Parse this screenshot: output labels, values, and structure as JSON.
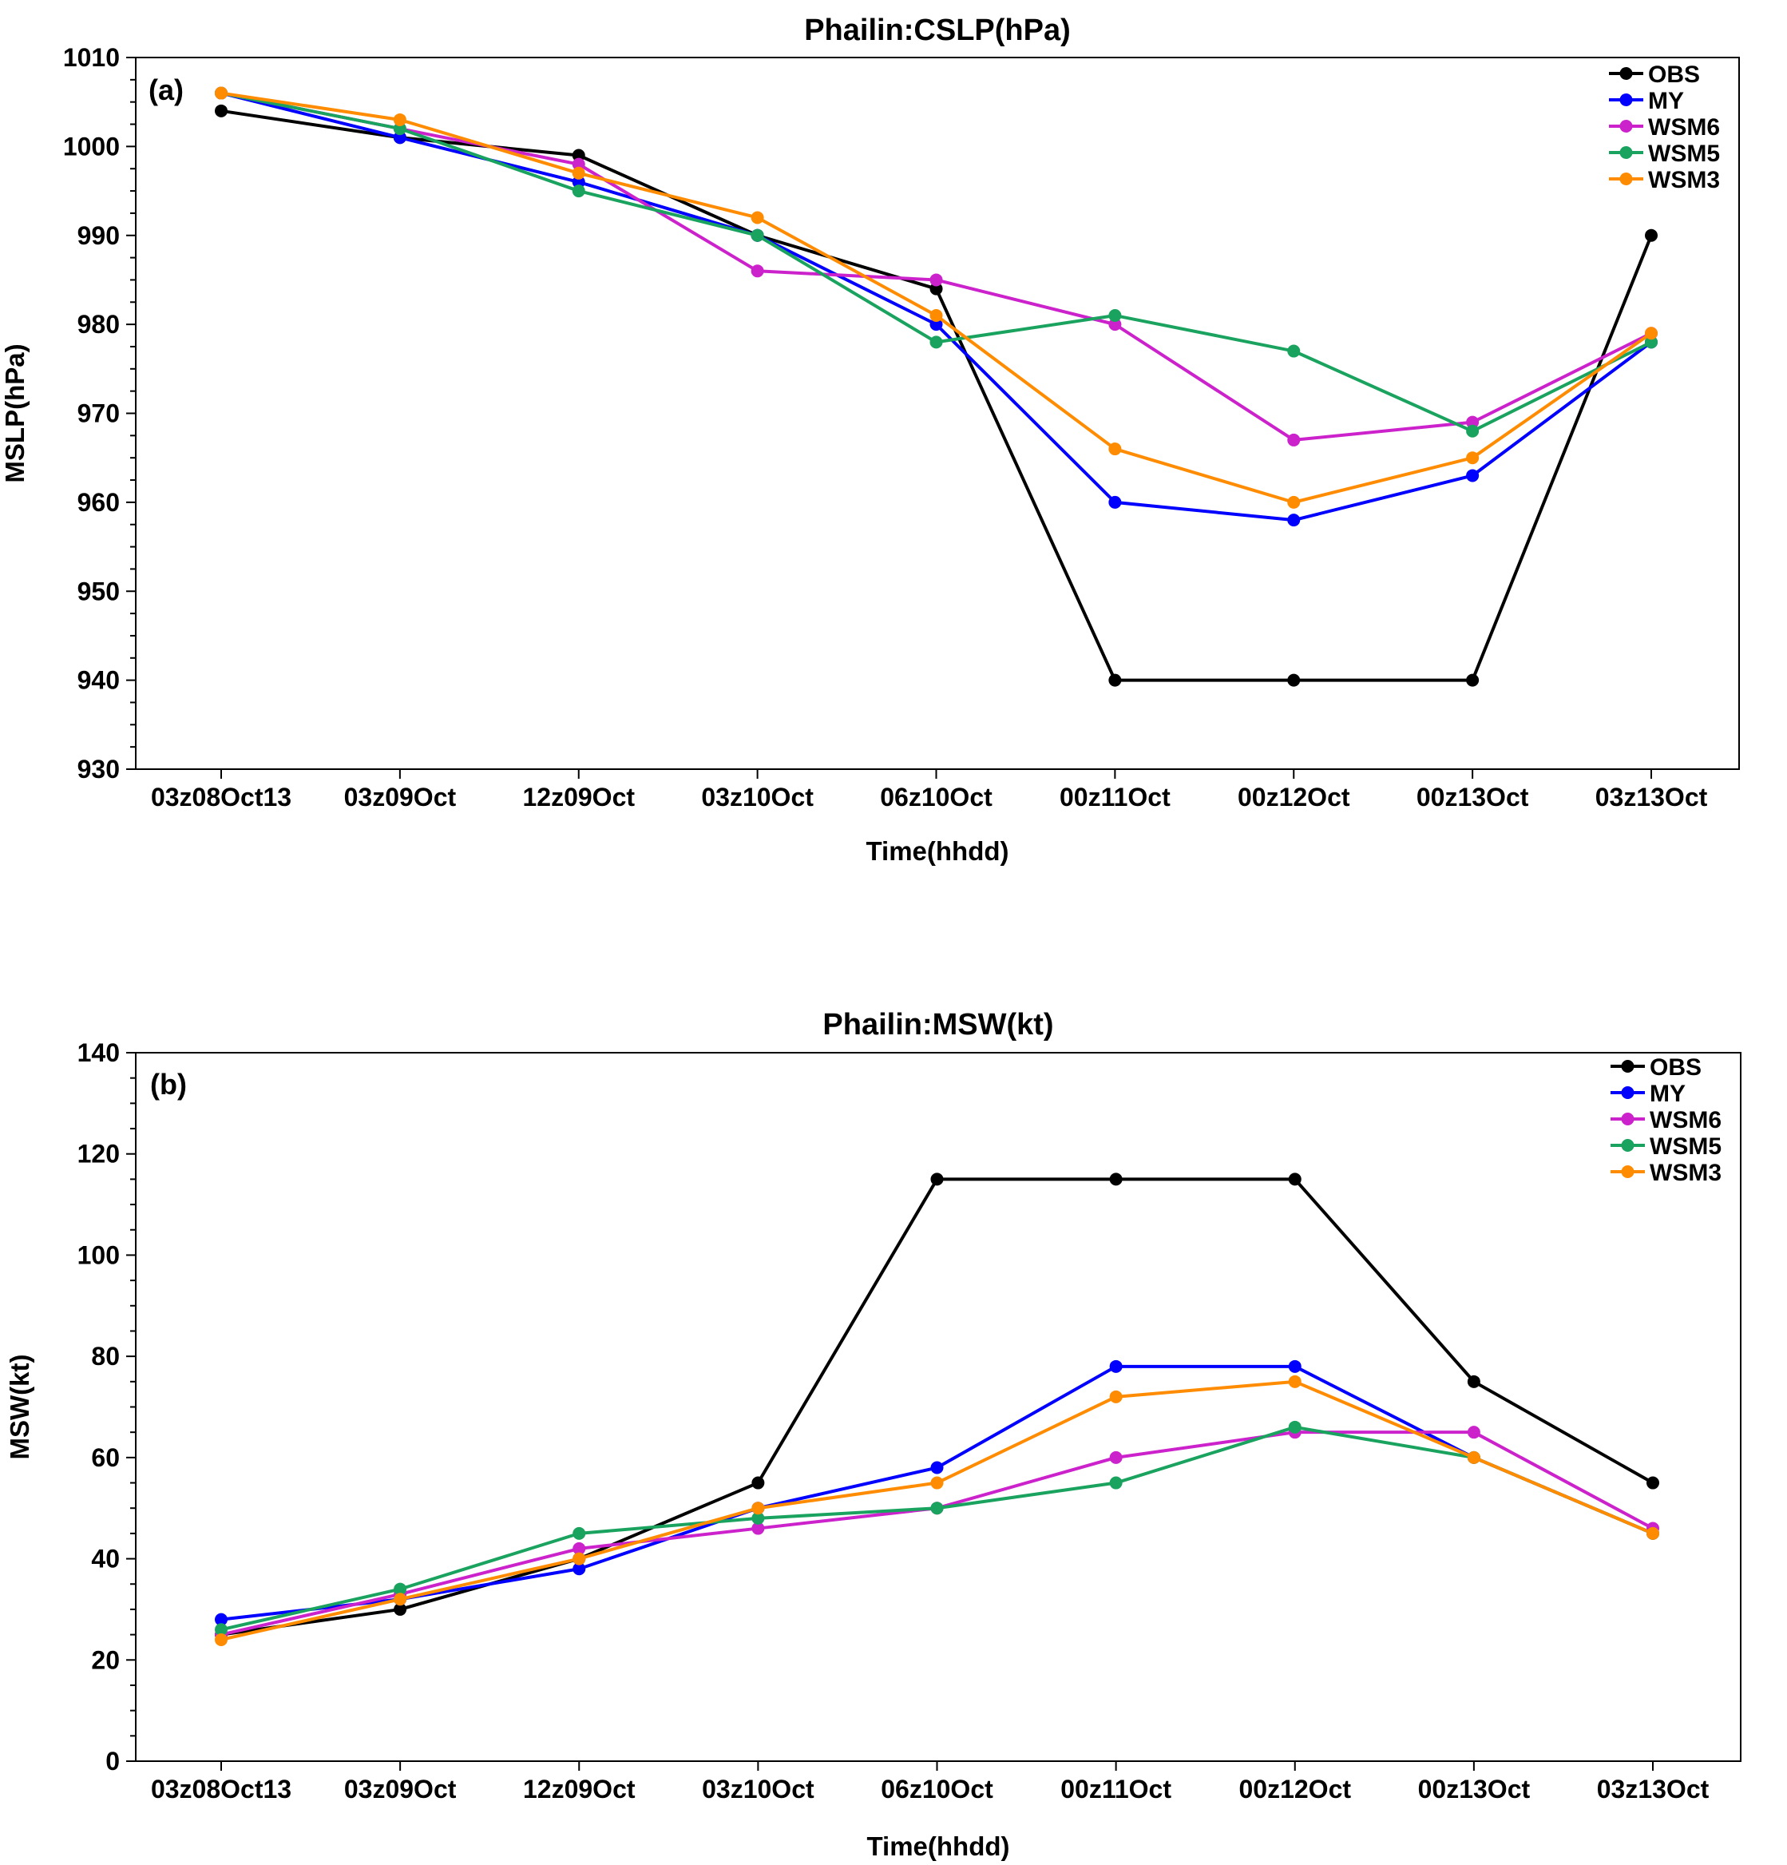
{
  "chart_data": [
    {
      "type": "line",
      "title": "Phailin:CSLP(hPa)",
      "panel_label": "(a)",
      "xlabel": "Time(hhdd)",
      "ylabel": "MSLP(hPa)",
      "ylim": [
        930,
        1010
      ],
      "yticks": [
        930,
        940,
        950,
        960,
        970,
        980,
        990,
        1000,
        1010
      ],
      "categories": [
        "03z08Oct13",
        "03z09Oct",
        "12z09Oct",
        "03z10Oct",
        "06z10Oct",
        "00z11Oct",
        "00z12Oct",
        "00z13Oct",
        "03z13Oct"
      ],
      "legend_position": "top-right",
      "series": [
        {
          "name": "OBS",
          "color": "#000000",
          "values": [
            1004,
            1001,
            999,
            990,
            984,
            940,
            940,
            940,
            990
          ]
        },
        {
          "name": "MY",
          "color": "#0000ff",
          "values": [
            1006,
            1001,
            996,
            990,
            980,
            960,
            958,
            963,
            978
          ]
        },
        {
          "name": "WSM6",
          "color": "#cc22cc",
          "values": [
            1006,
            1002,
            998,
            986,
            985,
            980,
            967,
            969,
            979
          ]
        },
        {
          "name": "WSM5",
          "color": "#1aa35f",
          "values": [
            1006,
            1002,
            995,
            990,
            978,
            981,
            977,
            968,
            978
          ]
        },
        {
          "name": "WSM3",
          "color": "#ff8c00",
          "values": [
            1006,
            1003,
            997,
            992,
            981,
            966,
            960,
            965,
            979
          ]
        }
      ]
    },
    {
      "type": "line",
      "title": "Phailin:MSW(kt)",
      "panel_label": "(b)",
      "xlabel": "Time(hhdd)",
      "ylabel": "MSW(kt)",
      "ylim": [
        0,
        140
      ],
      "yticks": [
        0,
        20,
        40,
        60,
        80,
        100,
        120,
        140
      ],
      "categories": [
        "03z08Oct13",
        "03z09Oct",
        "12z09Oct",
        "03z10Oct",
        "06z10Oct",
        "00z11Oct",
        "00z12Oct",
        "00z13Oct",
        "03z13Oct"
      ],
      "legend_position": "top-right",
      "series": [
        {
          "name": "OBS",
          "color": "#000000",
          "values": [
            25,
            30,
            40,
            55,
            115,
            115,
            115,
            75,
            55
          ]
        },
        {
          "name": "MY",
          "color": "#0000ff",
          "values": [
            28,
            32,
            38,
            50,
            58,
            78,
            78,
            60,
            45
          ]
        },
        {
          "name": "WSM6",
          "color": "#cc22cc",
          "values": [
            25,
            33,
            42,
            46,
            50,
            60,
            65,
            65,
            46
          ]
        },
        {
          "name": "WSM5",
          "color": "#1aa35f",
          "values": [
            26,
            34,
            45,
            48,
            50,
            55,
            66,
            60,
            45
          ]
        },
        {
          "name": "WSM3",
          "color": "#ff8c00",
          "values": [
            24,
            32,
            40,
            50,
            55,
            72,
            75,
            60,
            45
          ]
        }
      ]
    }
  ]
}
